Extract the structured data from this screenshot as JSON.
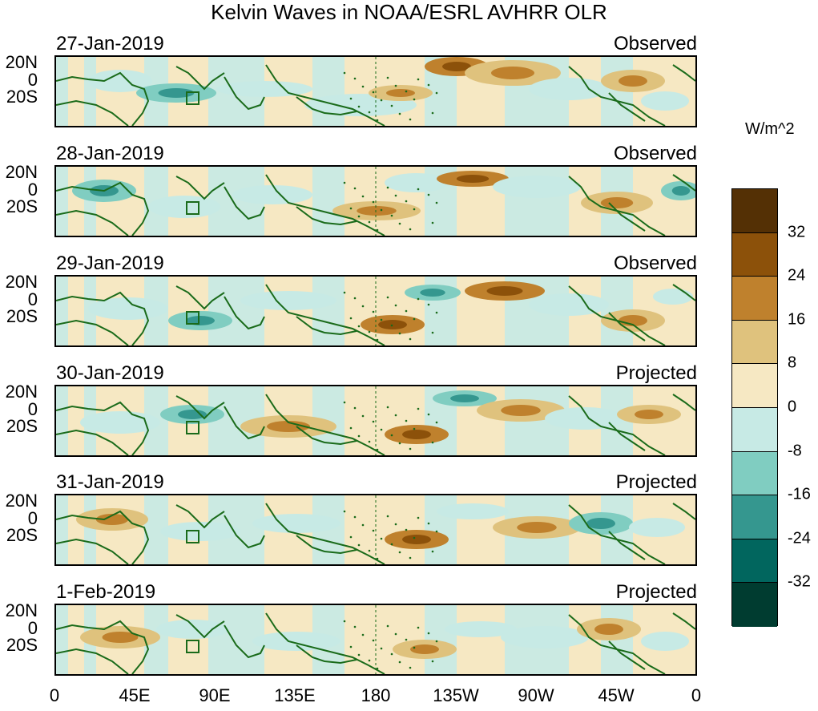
{
  "title": "Kelvin Waves in NOAA/ESRL AVHRR OLR",
  "panels": [
    {
      "date": "27-Jan-2019",
      "status": "Observed"
    },
    {
      "date": "28-Jan-2019",
      "status": "Observed"
    },
    {
      "date": "29-Jan-2019",
      "status": "Observed"
    },
    {
      "date": "30-Jan-2019",
      "status": "Projected"
    },
    {
      "date": "31-Jan-2019",
      "status": "Projected"
    },
    {
      "date": "1-Feb-2019",
      "status": "Projected"
    }
  ],
  "lat_labels": {
    "north": "20N",
    "equator": "0",
    "south": "20S"
  },
  "lon_labels": [
    "0",
    "45E",
    "90E",
    "135E",
    "180",
    "135W",
    "90W",
    "45W",
    "0"
  ],
  "colorbar": {
    "units": "W/m^2",
    "labels": [
      "32",
      "24",
      "16",
      "8",
      "0",
      "-8",
      "-16",
      "-24",
      "-32"
    ],
    "colors": [
      "#543005",
      "#8c510a",
      "#bf812d",
      "#dfc27d",
      "#f6e8c3",
      "#c7eae5",
      "#80cdc1",
      "#35978f",
      "#01665e",
      "#003c30"
    ]
  },
  "map_colors": {
    "land_outline": "#1a6b1a",
    "dateline": "#1a6b1a"
  }
}
